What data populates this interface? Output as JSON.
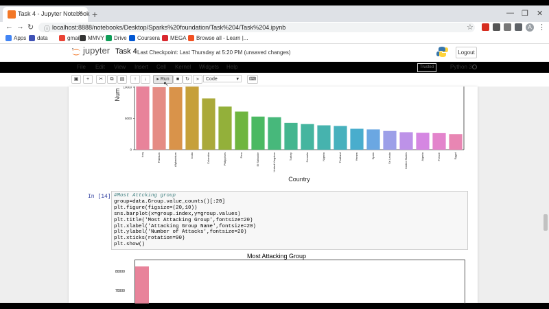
{
  "browser": {
    "tab_title": "Task 4 - Jupyter Notebook",
    "url": "localhost:8888/notebooks/Desktop/Sparks%20foundation/Task%204/Task%204.ipynb",
    "bookmarks": [
      {
        "label": "Apps",
        "color": "#4285f4"
      },
      {
        "label": "data",
        "color": "#3f51b5"
      },
      {
        "label": "gmaill",
        "color": "#ea4335"
      },
      {
        "label": "MMVY",
        "color": "#333333"
      },
      {
        "label": "Drive",
        "color": "#0f9d58"
      },
      {
        "label": "Coursera",
        "color": "#0056d2"
      },
      {
        "label": "MEGA",
        "color": "#d9272e"
      },
      {
        "label": "Browse all - Learn |...",
        "color": "#f25022"
      }
    ],
    "avatar_letter": "A"
  },
  "jupyter": {
    "brand": "jupyter",
    "notebook_name": "Task 4",
    "checkpoint": "Last Checkpoint: Last Thursday at 5:20 PM  (unsaved changes)",
    "logout": "Logout",
    "menu": [
      "File",
      "Edit",
      "View",
      "Insert",
      "Cell",
      "Kernel",
      "Widgets",
      "Help"
    ],
    "trusted": "Trusted",
    "kernel": "Python 3",
    "run_label": "Run",
    "cell_type": "Code"
  },
  "cell": {
    "prompt": "In [14]:",
    "lines": [
      "#Most Attcking group",
      "group=data.Group.value_counts()[:20]",
      "plt.figure(figsize=(20,10))",
      "sns.barplot(x=group.index,y=group.values)",
      "plt.title('Most Attacking Group',fontsize=20)",
      "plt.xlabel('Attacking Group Name',fontsize=20)",
      "plt.ylabel('Number of Attacks',fontsize=20)",
      "plt.xticks(rotation=90)",
      "plt.show()"
    ]
  },
  "chart_data": [
    {
      "type": "bar",
      "title": "",
      "xlabel": "Country",
      "ylabel": "Num",
      "yticks": [
        "0",
        "5000",
        "10000"
      ],
      "ylim": [
        0,
        10000
      ],
      "categories": [
        "Iraq",
        "Pakistan",
        "Afghanistan",
        "India",
        "Colombia",
        "Philippines",
        "Peru",
        "El Salvador",
        "United Kingdom",
        "Turkey",
        "Somalia",
        "Nigeria",
        "Thailand",
        "Yemen",
        "Spain",
        "Sri Lanka",
        "United States",
        "Algeria",
        "France",
        "Egypt"
      ],
      "values": [
        10200,
        10000,
        10000,
        10100,
        8200,
        6900,
        6100,
        5300,
        5200,
        4300,
        4100,
        3900,
        3800,
        3350,
        3250,
        3000,
        2800,
        2700,
        2650,
        2500
      ],
      "colors": [
        "#e8839a",
        "#e58c84",
        "#d9934a",
        "#c6a03a",
        "#aaa93a",
        "#93b03a",
        "#6fb53f",
        "#4bb962",
        "#47b87b",
        "#44b68f",
        "#45b59f",
        "#46b3ae",
        "#47b1bd",
        "#49adcd",
        "#6ba7e2",
        "#9c9fe8",
        "#bd92e8",
        "#d587e2",
        "#e384cc",
        "#e886b3"
      ]
    },
    {
      "type": "bar",
      "title": "Most Attacking Group",
      "yticks": [
        "80000",
        "70000"
      ],
      "values": [
        84000
      ]
    }
  ]
}
